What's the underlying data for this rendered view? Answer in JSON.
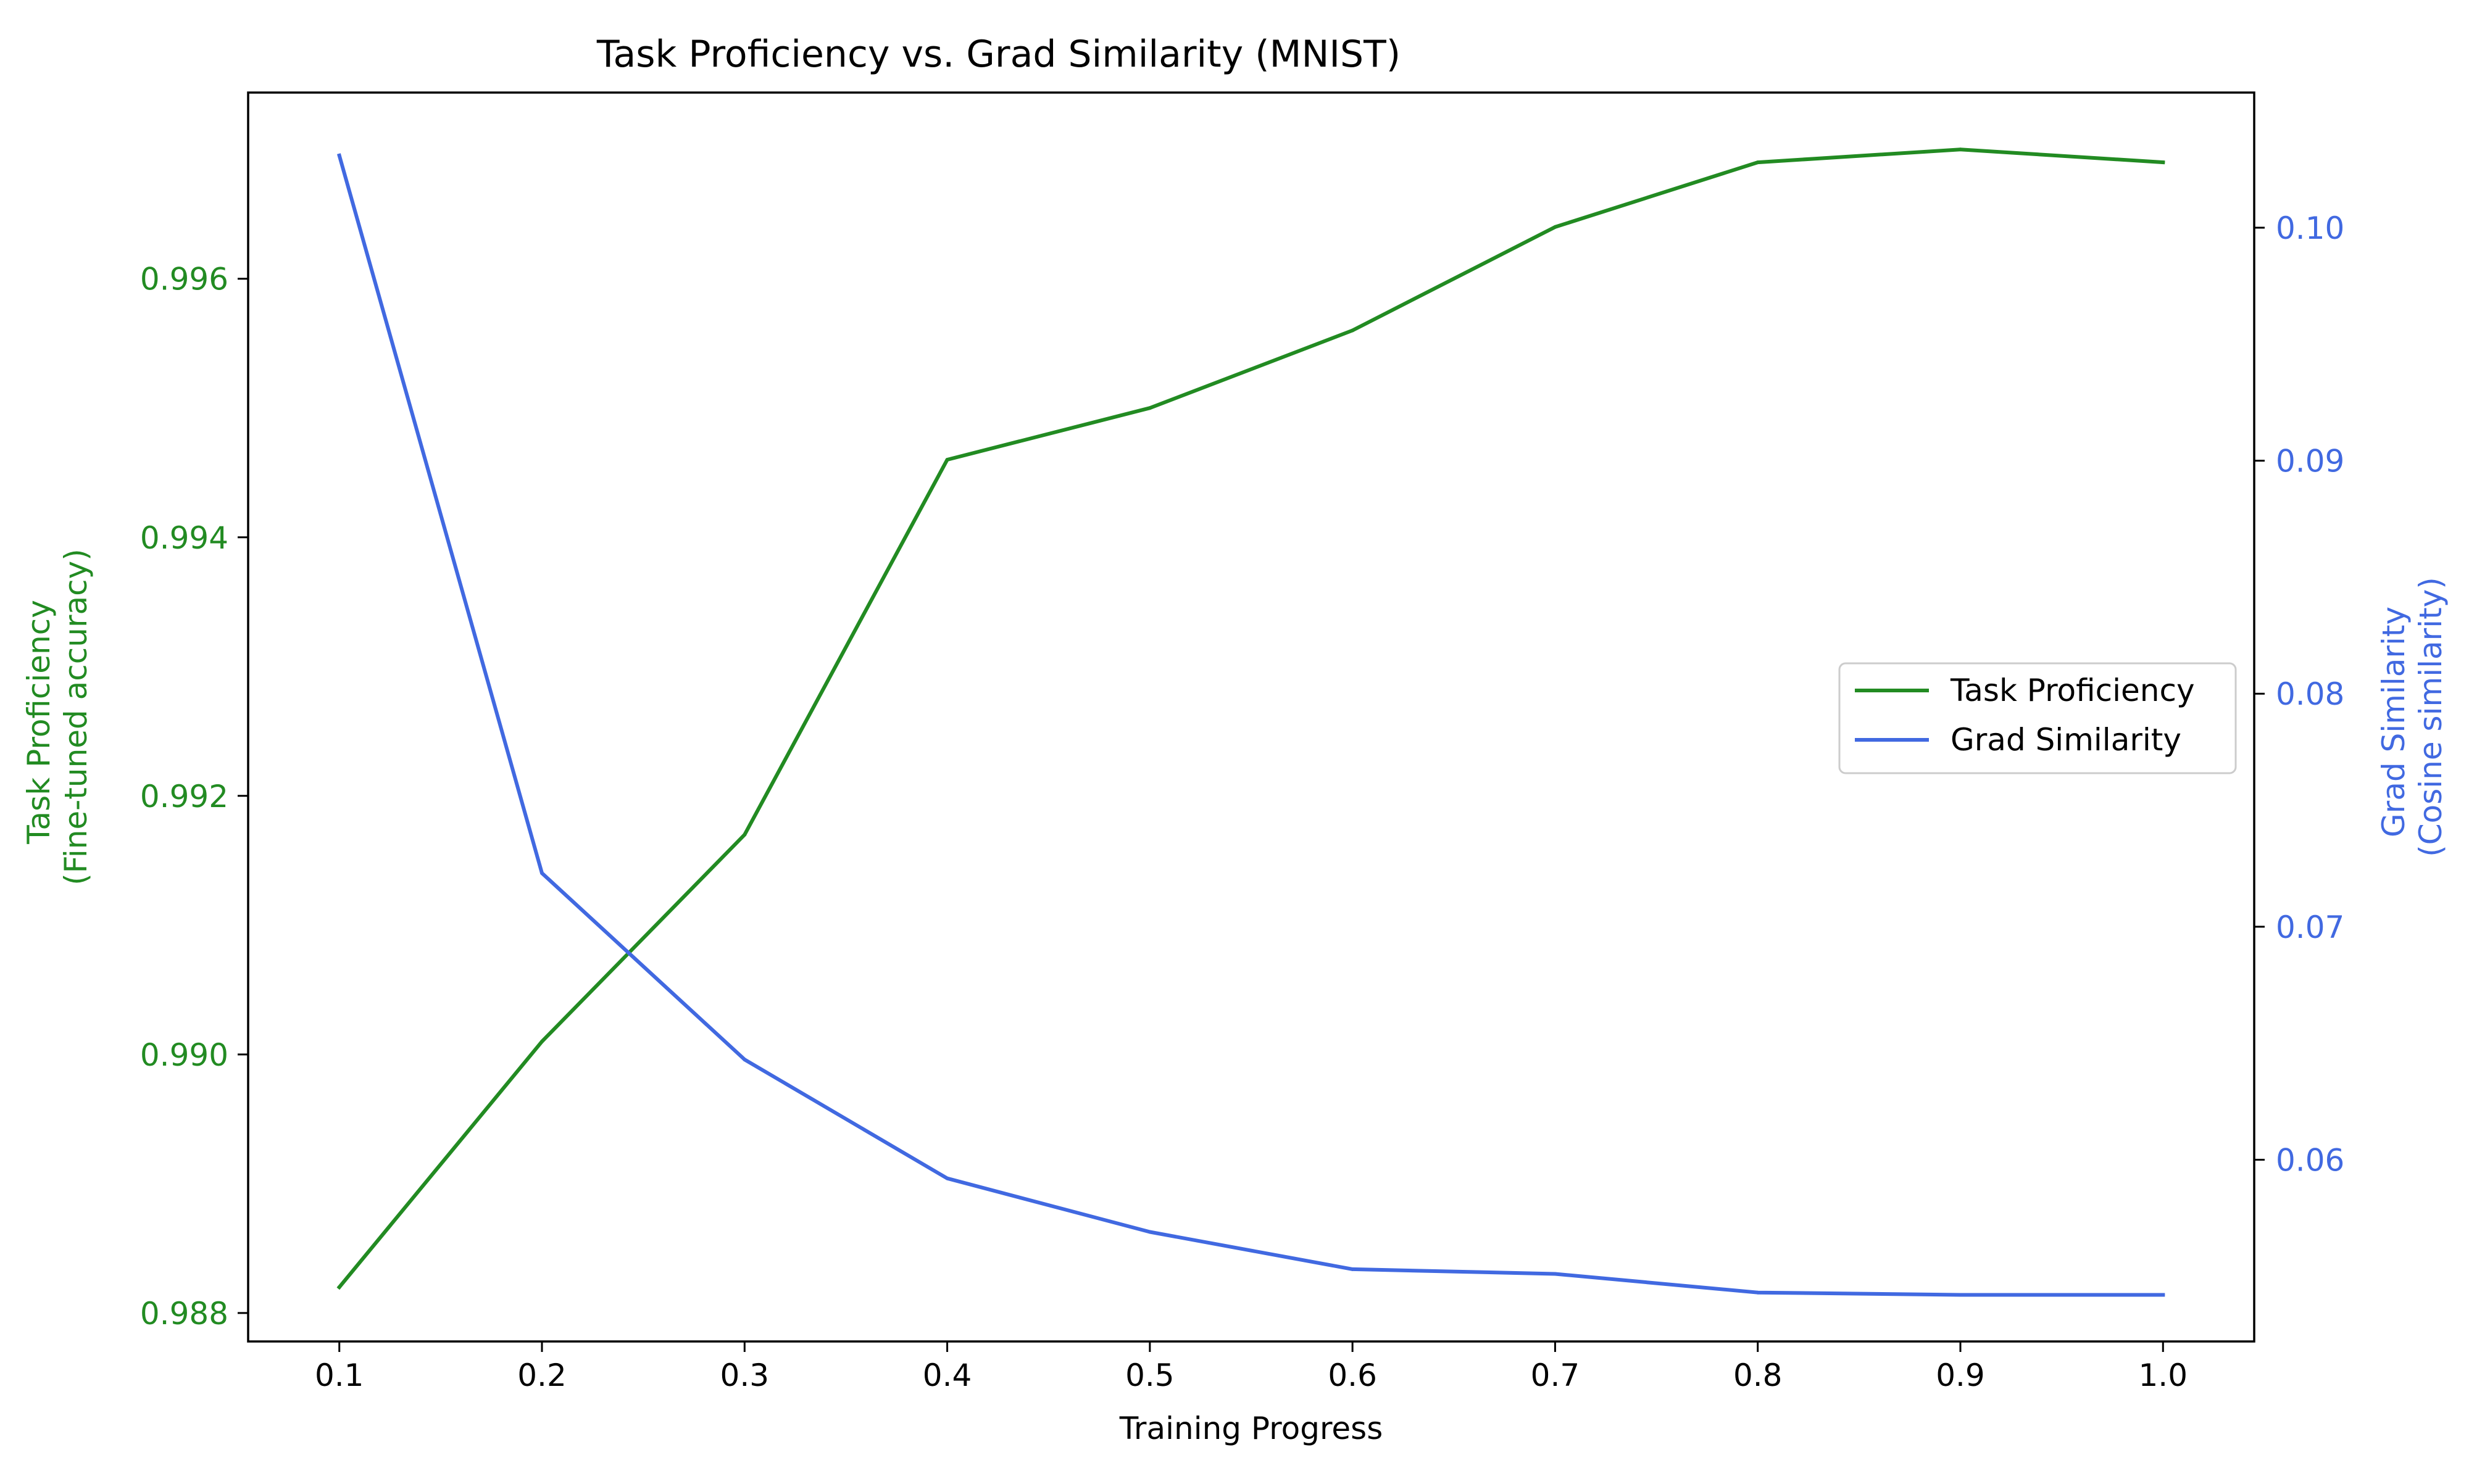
{
  "colors": {
    "left_series": "#228b22",
    "right_series": "#4169e1",
    "axis": "#000000",
    "background": "#ffffff",
    "legend_border": "#cccccc"
  },
  "chart_data": {
    "type": "line",
    "title": "Task Proficiency vs. Grad Similarity (MNIST)",
    "xlabel": "Training Progress",
    "ylabel_left": [
      "Task Proficiency",
      "(Fine-tuned accuracy)"
    ],
    "ylabel_right": [
      "Grad Similarity",
      "(Cosine similarity)"
    ],
    "x": [
      0.1,
      0.2,
      0.3,
      0.4,
      0.5,
      0.6,
      0.7,
      0.8,
      0.9,
      1.0
    ],
    "xlim": [
      0.055,
      1.045
    ],
    "ylim_left": [
      0.98778,
      0.99744
    ],
    "ylim_right": [
      0.0522,
      0.1058
    ],
    "xticks": [
      "0.1",
      "0.2",
      "0.3",
      "0.4",
      "0.5",
      "0.6",
      "0.7",
      "0.8",
      "0.9",
      "1.0"
    ],
    "yticks_left": [
      "0.988",
      "0.990",
      "0.992",
      "0.994",
      "0.996"
    ],
    "yticks_right": [
      "0.06",
      "0.07",
      "0.08",
      "0.09",
      "0.10"
    ],
    "grid": false,
    "legend_placement": "center-right",
    "series": [
      {
        "name": "Task Proficiency",
        "axis": "left",
        "color": "#228b22",
        "values": [
          0.9882,
          0.9901,
          0.9917,
          0.9946,
          0.995,
          0.9956,
          0.9964,
          0.9969,
          0.997,
          0.9969
        ]
      },
      {
        "name": "Grad Similarity",
        "axis": "right",
        "color": "#4169e1",
        "values": [
          0.1031,
          0.0723,
          0.0643,
          0.0592,
          0.0569,
          0.0553,
          0.0551,
          0.0543,
          0.0542,
          0.0542
        ]
      }
    ]
  }
}
